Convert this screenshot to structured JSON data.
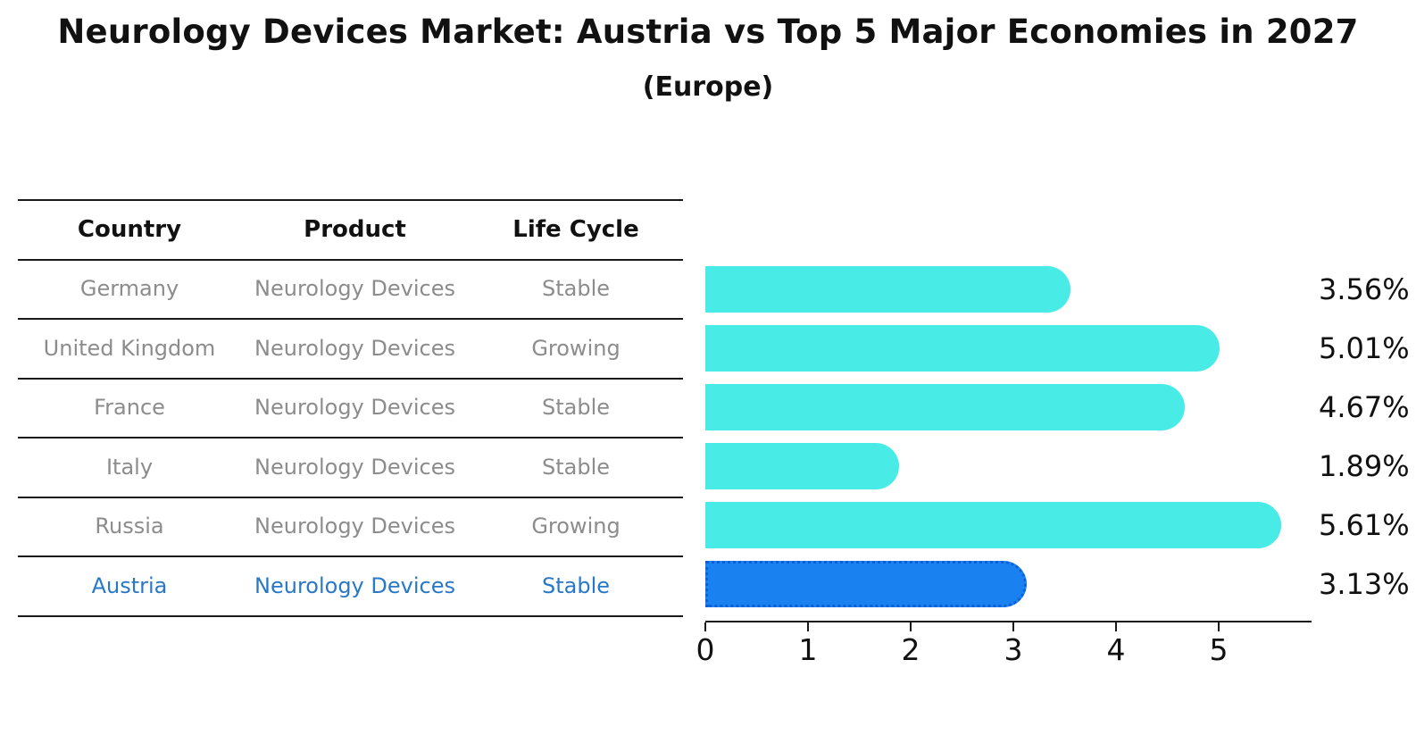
{
  "title": "Neurology Devices Market: Austria vs Top 5 Major Economies in 2027",
  "subtitle": "(Europe)",
  "colors": {
    "bar": "#49ebe7",
    "highlight_bar": "#1982f0",
    "highlight_bar_border": "#0c5fd6",
    "highlight_text": "#2878c8",
    "table_text": "#8c8c8c",
    "axis": "#1a1a1a"
  },
  "table": {
    "headers": [
      "Country",
      "Product",
      "Life Cycle"
    ],
    "rows": [
      {
        "country": "Germany",
        "product": "Neurology Devices",
        "life_cycle": "Stable",
        "highlight": false
      },
      {
        "country": "United Kingdom",
        "product": "Neurology Devices",
        "life_cycle": "Growing",
        "highlight": false
      },
      {
        "country": "France",
        "product": "Neurology Devices",
        "life_cycle": "Stable",
        "highlight": false
      },
      {
        "country": "Italy",
        "product": "Neurology Devices",
        "life_cycle": "Stable",
        "highlight": false
      },
      {
        "country": "Russia",
        "product": "Neurology Devices",
        "life_cycle": "Growing",
        "highlight": false
      },
      {
        "country": "Austria",
        "product": "Neurology Devices",
        "life_cycle": "Stable",
        "highlight": true
      }
    ]
  },
  "chart_data": {
    "type": "bar",
    "orientation": "horizontal",
    "title": "Neurology Devices Market: Austria vs Top 5 Major Economies in 2027",
    "subtitle": "(Europe)",
    "categories": [
      "Germany",
      "United Kingdom",
      "France",
      "Italy",
      "Russia",
      "Austria"
    ],
    "values": [
      3.56,
      5.01,
      4.67,
      1.89,
      5.61,
      3.13
    ],
    "labels": [
      "3.56%",
      "5.01%",
      "4.67%",
      "1.89%",
      "5.61%",
      "3.13%"
    ],
    "highlight_category": "Austria",
    "x_ticks": [
      0,
      1,
      2,
      3,
      4,
      5
    ],
    "xlim": [
      0,
      5.9
    ],
    "xlabel": "",
    "ylabel": "",
    "grid": false,
    "legend": false
  }
}
